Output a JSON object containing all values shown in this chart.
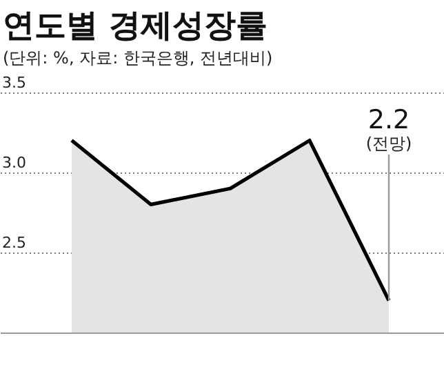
{
  "chart_data": {
    "type": "area",
    "title": "연도별 경제성장률",
    "subtitle": "(단위: %, 자료: 한국은행, 전년대비)",
    "categories": [
      null,
      null,
      null,
      null,
      null
    ],
    "series": [
      {
        "color": "#e4e4e4",
        "values": [
          3.2,
          2.8,
          2.9,
          3.2,
          2.2
        ],
        "value_labels": [
          null,
          null,
          null,
          null,
          "2.2"
        ]
      }
    ],
    "annotations": [
      "(전망)"
    ],
    "ylim": [
      2.0,
      3.5
    ],
    "yticks": [
      2.5,
      {
        "value": 3.0,
        "label": "3.0"
      },
      3.5
    ],
    "grid": "y"
  }
}
